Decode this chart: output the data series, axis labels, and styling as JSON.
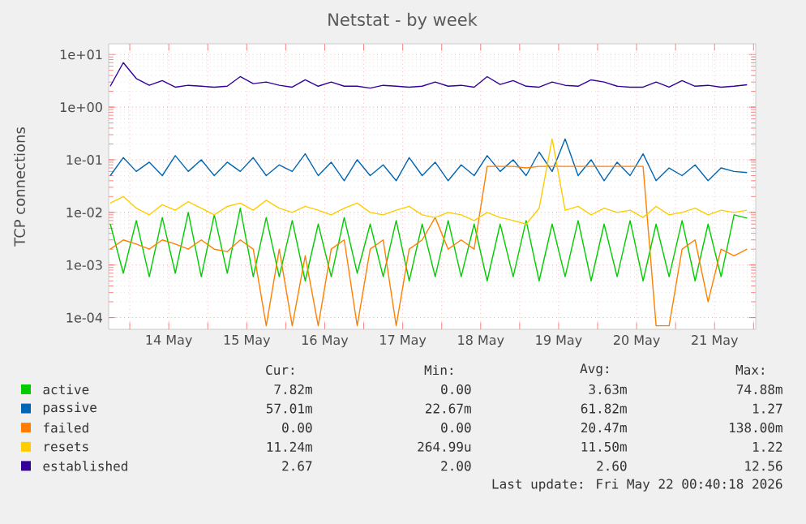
{
  "chart_data": {
    "type": "line",
    "title": "Netstat - by week",
    "ylabel": "TCP connections",
    "log": "y",
    "grid": true,
    "legend": "bottom",
    "marker": "none",
    "line_style": "solid",
    "xlim": [
      "2026-05-13T17:30",
      "2026-05-22T00:40"
    ],
    "xticks": [
      {
        "value": "2026-05-14T00:00",
        "label": null
      },
      {
        "value": "2026-05-14T12:00",
        "label": "14 May"
      },
      {
        "value": "2026-05-15T00:00",
        "label": null
      },
      {
        "value": "2026-05-15T12:00",
        "label": "15 May"
      },
      {
        "value": "2026-05-16T00:00",
        "label": null
      },
      {
        "value": "2026-05-16T12:00",
        "label": "16 May"
      },
      {
        "value": "2026-05-17T00:00",
        "label": null
      },
      {
        "value": "2026-05-17T12:00",
        "label": "17 May"
      },
      {
        "value": "2026-05-18T00:00",
        "label": null
      },
      {
        "value": "2026-05-18T12:00",
        "label": "18 May"
      },
      {
        "value": "2026-05-19T00:00",
        "label": null
      },
      {
        "value": "2026-05-19T12:00",
        "label": "19 May"
      },
      {
        "value": "2026-05-20T00:00",
        "label": null
      },
      {
        "value": "2026-05-20T12:00",
        "label": "20 May"
      },
      {
        "value": "2026-05-21T00:00",
        "label": null
      },
      {
        "value": "2026-05-21T12:00",
        "label": "21 May"
      },
      {
        "value": "2026-05-22T00:00",
        "label": null
      }
    ],
    "ylim": [
      6e-05,
      16
    ],
    "yticks": [
      {
        "value": 0.0001,
        "label": "1e-04"
      },
      {
        "value": 0.001,
        "label": "1e-03"
      },
      {
        "value": 0.01,
        "label": "1e-02"
      },
      {
        "value": 0.1,
        "label": "1e-01"
      },
      {
        "value": 1,
        "label": "1e+00"
      },
      {
        "value": 10,
        "label": "1e+01"
      }
    ],
    "x": [
      "2026-05-13T18:00",
      "2026-05-13T22:00",
      "2026-05-14T02:00",
      "2026-05-14T06:00",
      "2026-05-14T10:00",
      "2026-05-14T14:00",
      "2026-05-14T18:00",
      "2026-05-14T22:00",
      "2026-05-15T02:00",
      "2026-05-15T06:00",
      "2026-05-15T10:00",
      "2026-05-15T14:00",
      "2026-05-15T18:00",
      "2026-05-15T22:00",
      "2026-05-16T02:00",
      "2026-05-16T06:00",
      "2026-05-16T10:00",
      "2026-05-16T14:00",
      "2026-05-16T18:00",
      "2026-05-16T22:00",
      "2026-05-17T02:00",
      "2026-05-17T06:00",
      "2026-05-17T10:00",
      "2026-05-17T14:00",
      "2026-05-17T18:00",
      "2026-05-17T22:00",
      "2026-05-18T02:00",
      "2026-05-18T06:00",
      "2026-05-18T10:00",
      "2026-05-18T14:00",
      "2026-05-18T18:00",
      "2026-05-18T22:00",
      "2026-05-19T02:00",
      "2026-05-19T06:00",
      "2026-05-19T10:00",
      "2026-05-19T14:00",
      "2026-05-19T18:00",
      "2026-05-19T22:00",
      "2026-05-20T02:00",
      "2026-05-20T06:00",
      "2026-05-20T10:00",
      "2026-05-20T14:00",
      "2026-05-20T18:00",
      "2026-05-20T22:00",
      "2026-05-21T02:00",
      "2026-05-21T06:00",
      "2026-05-21T10:00",
      "2026-05-21T14:00",
      "2026-05-21T18:00",
      "2026-05-21T22:00"
    ],
    "series": [
      {
        "name": "active",
        "color": "#00cc00",
        "values": [
          0.006,
          0.0007,
          0.007,
          0.0006,
          0.008,
          0.0007,
          0.01,
          0.0006,
          0.009,
          0.0007,
          0.012,
          0.0006,
          0.008,
          0.0006,
          0.007,
          0.0005,
          0.006,
          0.0006,
          0.008,
          0.0007,
          0.006,
          0.0006,
          0.007,
          0.0005,
          0.006,
          0.0006,
          0.007,
          0.0006,
          0.006,
          0.0005,
          0.006,
          0.0006,
          0.007,
          0.0005,
          0.006,
          0.0006,
          0.007,
          0.0005,
          0.006,
          0.0006,
          0.007,
          0.0005,
          0.006,
          0.0006,
          0.007,
          0.0005,
          0.006,
          0.0006,
          0.009,
          0.0078
        ]
      },
      {
        "name": "passive",
        "color": "#0066b3",
        "values": [
          0.05,
          0.11,
          0.06,
          0.09,
          0.05,
          0.12,
          0.06,
          0.1,
          0.05,
          0.09,
          0.06,
          0.11,
          0.05,
          0.08,
          0.06,
          0.13,
          0.05,
          0.09,
          0.04,
          0.1,
          0.05,
          0.08,
          0.04,
          0.11,
          0.05,
          0.09,
          0.04,
          0.08,
          0.05,
          0.12,
          0.06,
          0.1,
          0.05,
          0.14,
          0.06,
          0.25,
          0.05,
          0.1,
          0.04,
          0.09,
          0.05,
          0.13,
          0.04,
          0.07,
          0.05,
          0.08,
          0.04,
          0.07,
          0.06,
          0.057
        ]
      },
      {
        "name": "failed",
        "color": "#ff8000",
        "values": [
          0.002,
          0.003,
          0.0025,
          0.002,
          0.003,
          0.0025,
          0.002,
          0.003,
          0.002,
          0.0018,
          0.003,
          0.002,
          7e-05,
          0.002,
          7e-05,
          0.0015,
          7e-05,
          0.002,
          0.003,
          7e-05,
          0.002,
          0.003,
          7e-05,
          0.002,
          0.003,
          0.008,
          0.002,
          0.003,
          0.002,
          0.075,
          0.075,
          0.075,
          0.07,
          0.075,
          0.075,
          0.075,
          0.075,
          0.075,
          0.075,
          0.075,
          0.075,
          0.075,
          7e-05,
          7e-05,
          0.002,
          0.003,
          0.0002,
          0.002,
          0.0015,
          0.002
        ]
      },
      {
        "name": "resets",
        "color": "#ffcc00",
        "values": [
          0.015,
          0.02,
          0.012,
          0.009,
          0.014,
          0.011,
          0.016,
          0.012,
          0.009,
          0.013,
          0.015,
          0.011,
          0.017,
          0.012,
          0.01,
          0.013,
          0.011,
          0.009,
          0.012,
          0.015,
          0.01,
          0.009,
          0.011,
          0.013,
          0.009,
          0.008,
          0.01,
          0.009,
          0.007,
          0.01,
          0.008,
          0.007,
          0.006,
          0.012,
          0.25,
          0.011,
          0.013,
          0.009,
          0.012,
          0.01,
          0.011,
          0.008,
          0.013,
          0.009,
          0.01,
          0.012,
          0.009,
          0.011,
          0.01,
          0.011
        ]
      },
      {
        "name": "established",
        "color": "#330099",
        "values": [
          2.5,
          7.0,
          3.5,
          2.6,
          3.2,
          2.4,
          2.6,
          2.5,
          2.4,
          2.5,
          3.8,
          2.8,
          3.0,
          2.6,
          2.4,
          3.3,
          2.5,
          3.0,
          2.5,
          2.5,
          2.3,
          2.6,
          2.5,
          2.4,
          2.5,
          3.0,
          2.5,
          2.6,
          2.4,
          3.8,
          2.7,
          3.2,
          2.5,
          2.4,
          3.0,
          2.6,
          2.5,
          3.3,
          3.0,
          2.5,
          2.4,
          2.4,
          3.0,
          2.4,
          3.2,
          2.5,
          2.6,
          2.4,
          2.5,
          2.67
        ]
      }
    ],
    "annotations": [
      "Cur:",
      "Min:",
      "Avg:",
      "Max:",
      "7.82m",
      "0.00",
      "3.63m",
      "74.88m",
      "57.01m",
      "22.67m",
      "61.82m",
      "1.27",
      "0.00",
      "0.00",
      "20.47m",
      "138.00m",
      "11.24m",
      "264.99u",
      "11.50m",
      "1.22",
      "2.67",
      "2.00",
      "2.60",
      "12.56",
      "Last update: Fri May 22 00:40:18 2026"
    ]
  }
}
